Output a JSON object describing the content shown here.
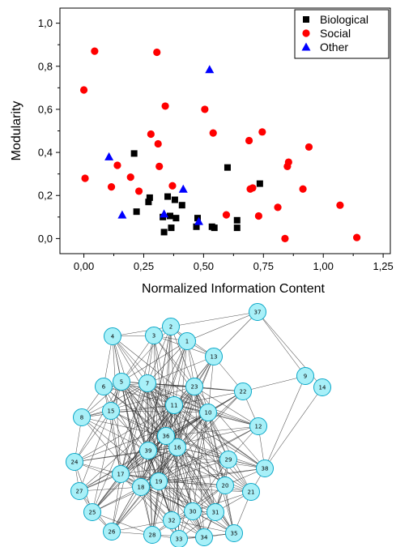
{
  "chart_data": [
    {
      "type": "scatter",
      "xlabel": "Normalized Information Content",
      "ylabel": "Modularity",
      "xlim": [
        -0.1,
        1.28
      ],
      "ylim": [
        -0.07,
        1.07
      ],
      "x_ticks": [
        "0,00",
        "0,25",
        "0,50",
        "0,75",
        "1,00",
        "1,25"
      ],
      "x_tick_values": [
        0,
        0.25,
        0.5,
        0.75,
        1.0,
        1.25
      ],
      "y_ticks": [
        "0,0",
        "0,2",
        "0,4",
        "0,6",
        "0,8",
        "1,0"
      ],
      "y_tick_values": [
        0,
        0.2,
        0.4,
        0.6,
        0.8,
        1.0
      ],
      "grid": false,
      "legend_position": "top-right",
      "series": [
        {
          "name": "Biological",
          "marker": "square",
          "color": "#000000",
          "points": [
            [
              0.21,
              0.395
            ],
            [
              0.22,
              0.125
            ],
            [
              0.27,
              0.17
            ],
            [
              0.275,
              0.19
            ],
            [
              0.33,
              0.1
            ],
            [
              0.335,
              0.03
            ],
            [
              0.35,
              0.195
            ],
            [
              0.36,
              0.105
            ],
            [
              0.365,
              0.05
            ],
            [
              0.38,
              0.18
            ],
            [
              0.385,
              0.095
            ],
            [
              0.41,
              0.155
            ],
            [
              0.47,
              0.055
            ],
            [
              0.475,
              0.095
            ],
            [
              0.535,
              0.055
            ],
            [
              0.545,
              0.05
            ],
            [
              0.6,
              0.33
            ],
            [
              0.64,
              0.085
            ],
            [
              0.64,
              0.05
            ],
            [
              0.735,
              0.255
            ]
          ]
        },
        {
          "name": "Social",
          "marker": "circle",
          "color": "#ff0000",
          "points": [
            [
              0.0,
              0.69
            ],
            [
              0.005,
              0.28
            ],
            [
              0.045,
              0.87
            ],
            [
              0.115,
              0.24
            ],
            [
              0.14,
              0.34
            ],
            [
              0.195,
              0.285
            ],
            [
              0.23,
              0.22
            ],
            [
              0.28,
              0.485
            ],
            [
              0.305,
              0.865
            ],
            [
              0.31,
              0.44
            ],
            [
              0.315,
              0.335
            ],
            [
              0.34,
              0.615
            ],
            [
              0.37,
              0.245
            ],
            [
              0.505,
              0.6
            ],
            [
              0.54,
              0.49
            ],
            [
              0.595,
              0.11
            ],
            [
              0.69,
              0.455
            ],
            [
              0.695,
              0.23
            ],
            [
              0.705,
              0.235
            ],
            [
              0.73,
              0.105
            ],
            [
              0.745,
              0.495
            ],
            [
              0.81,
              0.145
            ],
            [
              0.84,
              0.0
            ],
            [
              0.85,
              0.335
            ],
            [
              0.855,
              0.355
            ],
            [
              0.915,
              0.23
            ],
            [
              0.94,
              0.425
            ],
            [
              1.07,
              0.155
            ],
            [
              1.14,
              0.005
            ]
          ]
        },
        {
          "name": "Other",
          "marker": "triangle",
          "color": "#0000ff",
          "points": [
            [
              0.105,
              0.38
            ],
            [
              0.16,
              0.11
            ],
            [
              0.335,
              0.115
            ],
            [
              0.415,
              0.23
            ],
            [
              0.48,
              0.08
            ],
            [
              0.525,
              0.785
            ]
          ]
        }
      ]
    },
    {
      "type": "network",
      "node_color": "#a8f0f8",
      "node_stroke": "#0aa7c8",
      "edge_color": "#333333",
      "nodes": [
        "1",
        "2",
        "3",
        "4",
        "5",
        "6",
        "7",
        "8",
        "9",
        "10",
        "11",
        "12",
        "13",
        "14",
        "15",
        "16",
        "17",
        "18",
        "19",
        "20",
        "21",
        "22",
        "23",
        "24",
        "25",
        "26",
        "27",
        "28",
        "29",
        "30",
        "31",
        "32",
        "33",
        "34",
        "35",
        "36",
        "37",
        "38",
        "39"
      ]
    }
  ]
}
